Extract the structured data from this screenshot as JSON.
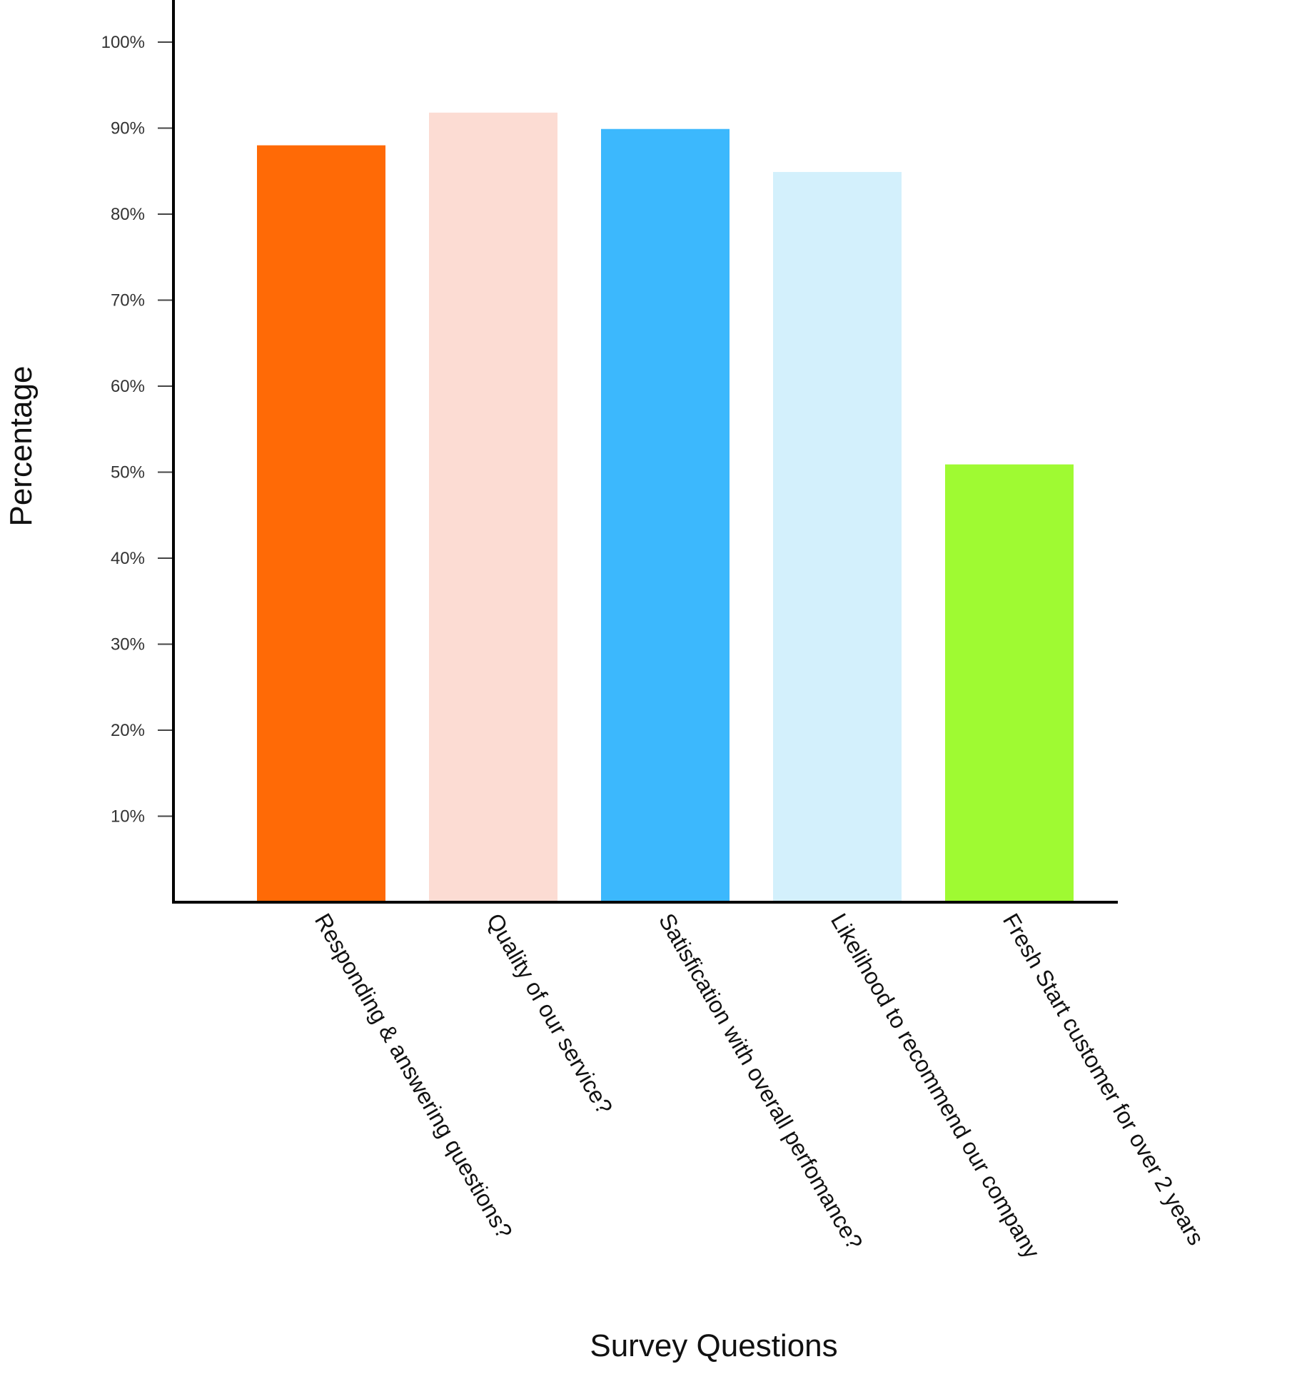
{
  "chart_data": {
    "type": "bar",
    "title": "",
    "xlabel": "Survey Questions",
    "ylabel": "Percentage",
    "ylim": [
      0,
      104
    ],
    "yticks": [
      10,
      20,
      30,
      40,
      50,
      60,
      70,
      80,
      90,
      100
    ],
    "ytick_labels": [
      "10%",
      "20%",
      "30%",
      "40%",
      "50%",
      "60%",
      "70%",
      "80%",
      "90%",
      "100%"
    ],
    "grid": false,
    "legend": "none",
    "categories": [
      "Responding & answering questions?",
      "Quality of our service?",
      "Satisfication with overall perfomance?",
      "Likelihood to recommend our company",
      "Fresh Start customer for over 2 years"
    ],
    "values": [
      88,
      91.8,
      89.9,
      84.9,
      50.9
    ],
    "colors": [
      "#ff6a06",
      "#fcdcd3",
      "#3cb8fd",
      "#d3f0fc",
      "#9ffa32"
    ],
    "axis_color": "#000000"
  }
}
